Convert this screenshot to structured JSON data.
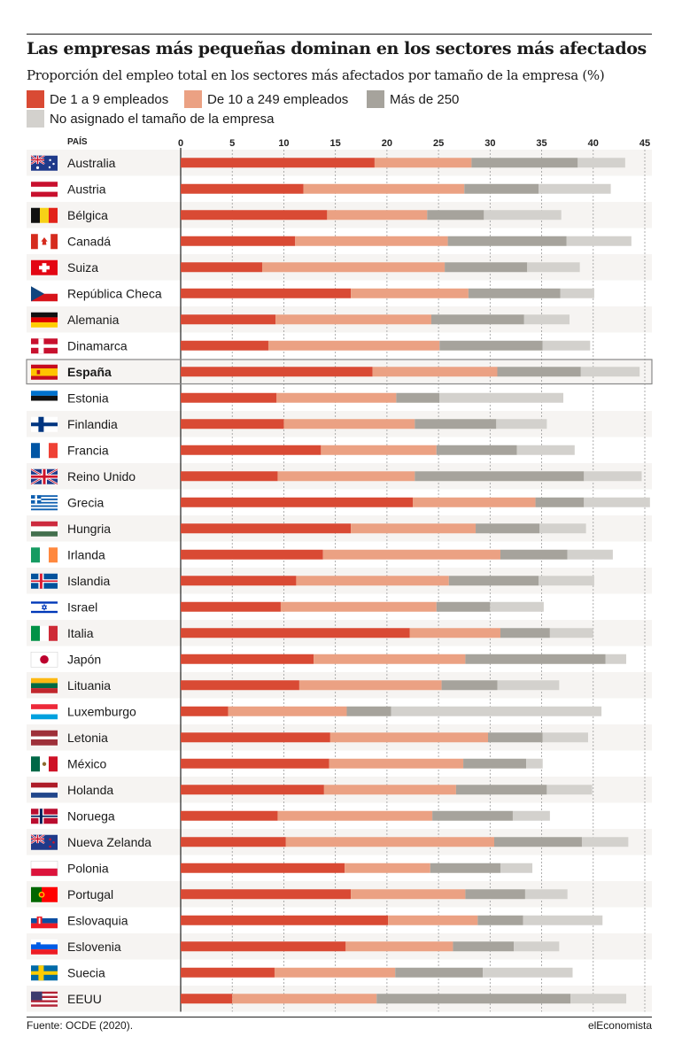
{
  "header": {
    "title": "Las empresas más pequeñas dominan en los sectores más afectados",
    "subtitle": "Proporción del empleo total en los sectores más afectados por tamaño de la empresa (%)"
  },
  "legend": [
    {
      "label": "De 1 a 9 empleados",
      "color": "#d94a34"
    },
    {
      "label": "De 10 a 249 empleados",
      "color": "#eba183"
    },
    {
      "label": "Más de 250",
      "color": "#a6a39c"
    },
    {
      "label": "No asignado el tamaño de la empresa",
      "color": "#d3d1cd"
    }
  ],
  "footer": {
    "source": "Fuente: OCDE (2020).",
    "brand": "elEconomista"
  },
  "chart_data": {
    "type": "bar",
    "orientation": "horizontal",
    "stacked": true,
    "category_header": "PAÍS",
    "xlim": [
      0,
      45
    ],
    "xticks": [
      0,
      5,
      10,
      15,
      20,
      25,
      30,
      35,
      40,
      45
    ],
    "grid": true,
    "highlight": "España",
    "categories": [
      "Australia",
      "Austria",
      "Bélgica",
      "Canadá",
      "Suiza",
      "República Checa",
      "Alemania",
      "Dinamarca",
      "España",
      "Estonia",
      "Finlandia",
      "Francia",
      "Reino Unido",
      "Grecia",
      "Hungria",
      "Irlanda",
      "Islandia",
      "Israel",
      "Italia",
      "Japón",
      "Lituania",
      "Luxemburgo",
      "Letonia",
      "México",
      "Holanda",
      "Noruega",
      "Nueva Zelanda",
      "Polonia",
      "Portugal",
      "Eslovaquia",
      "Eslovenia",
      "Suecia",
      "EEUU"
    ],
    "series": [
      {
        "name": "De 1 a 9 empleados",
        "color": "#d94a34",
        "values": [
          18.8,
          11.9,
          14.2,
          11.1,
          7.9,
          16.5,
          9.2,
          8.5,
          18.6,
          9.3,
          10.0,
          13.6,
          9.4,
          22.5,
          16.5,
          13.8,
          11.2,
          9.7,
          22.2,
          12.9,
          11.5,
          4.6,
          14.5,
          14.4,
          13.9,
          9.4,
          10.2,
          15.9,
          16.5,
          20.1,
          16.0,
          9.1,
          5.0
        ]
      },
      {
        "name": "De 10 a 249 empleados",
        "color": "#eba183",
        "values": [
          9.4,
          15.6,
          9.7,
          14.8,
          17.7,
          11.4,
          15.1,
          16.6,
          12.1,
          11.6,
          12.7,
          11.2,
          13.3,
          11.9,
          12.1,
          17.2,
          14.8,
          15.1,
          8.8,
          14.7,
          13.8,
          11.5,
          15.3,
          13.0,
          12.8,
          15.0,
          20.2,
          8.3,
          11.1,
          8.7,
          10.4,
          11.7,
          14.0
        ]
      },
      {
        "name": "Más de 250",
        "color": "#a6a39c",
        "values": [
          10.3,
          7.2,
          5.5,
          11.5,
          8.0,
          8.9,
          9.0,
          10.0,
          8.1,
          4.2,
          7.9,
          7.8,
          16.4,
          4.7,
          6.2,
          6.5,
          8.7,
          5.2,
          4.8,
          13.6,
          5.4,
          4.3,
          5.3,
          6.1,
          8.8,
          7.8,
          8.5,
          6.8,
          5.8,
          4.4,
          5.9,
          8.5,
          18.8
        ]
      },
      {
        "name": "No asignado el tamaño de la empresa",
        "color": "#d3d1cd",
        "values": [
          4.6,
          7.0,
          7.5,
          6.3,
          5.1,
          3.3,
          4.4,
          4.6,
          5.7,
          12.0,
          4.9,
          5.6,
          5.6,
          6.4,
          4.5,
          4.4,
          5.4,
          5.2,
          4.2,
          2.0,
          6.0,
          20.4,
          4.4,
          1.6,
          4.4,
          3.6,
          4.5,
          3.1,
          4.1,
          7.7,
          4.4,
          8.7,
          5.4
        ]
      }
    ],
    "flags": [
      "australia",
      "austria",
      "belgium",
      "canada",
      "switzerland",
      "czech-republic",
      "germany",
      "denmark",
      "spain",
      "estonia",
      "finland",
      "france",
      "united-kingdom",
      "greece",
      "hungary",
      "ireland",
      "iceland",
      "israel",
      "italy",
      "japan",
      "lithuania",
      "luxembourg",
      "latvia",
      "mexico",
      "netherlands",
      "norway",
      "new-zealand",
      "poland",
      "portugal",
      "slovakia",
      "slovenia",
      "sweden",
      "usa"
    ]
  }
}
